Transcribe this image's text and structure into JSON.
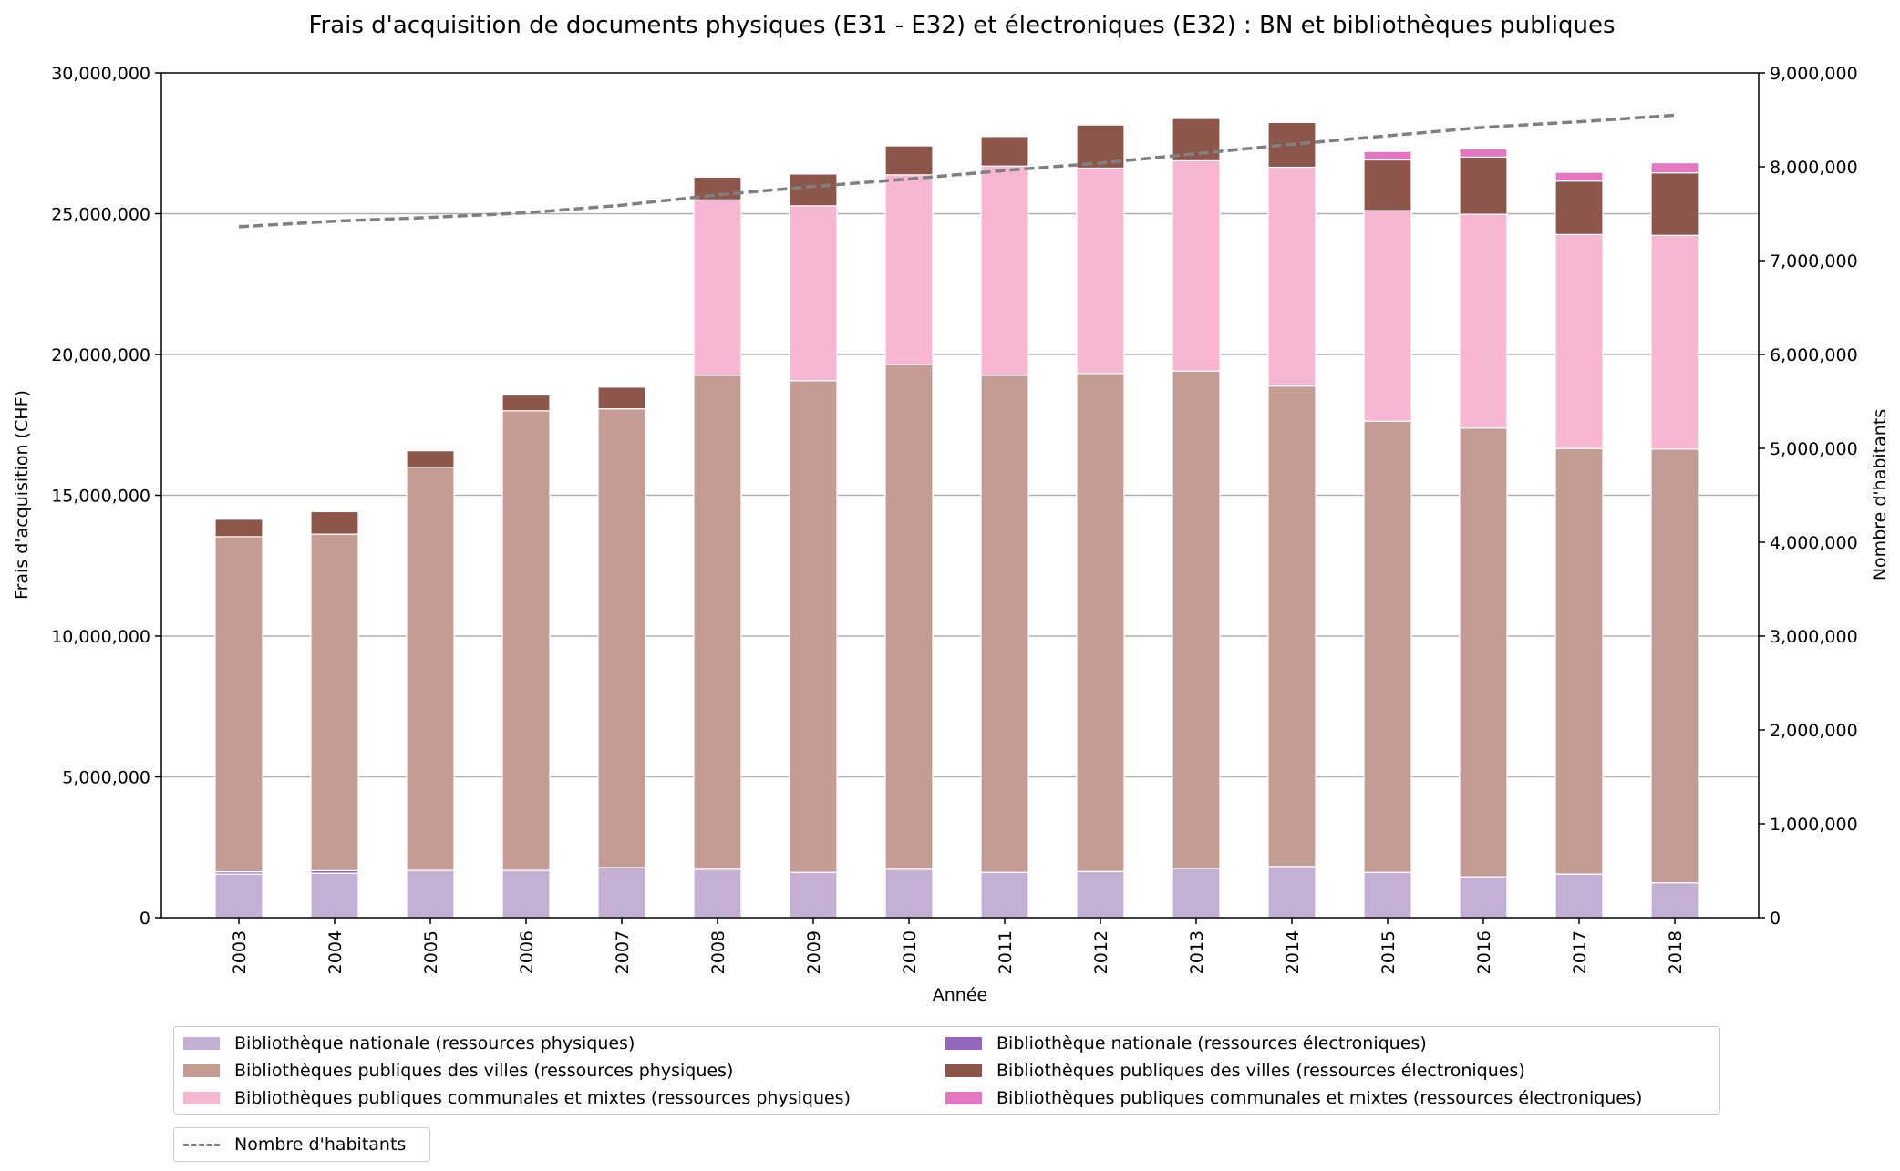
{
  "chart_data": {
    "type": "bar",
    "stacked": true,
    "title": "Frais d'acquisition de documents physiques (E31 - E32) et électroniques (E32) : BN et bibliothèques publiques",
    "xlabel": "Année",
    "ylabel": "Frais d'acquisition (CHF)",
    "ylabel_right": "Nombre d'habitants",
    "ylim": [
      0,
      30000000
    ],
    "ylim_right": [
      0,
      9000000
    ],
    "yticks": [
      "0",
      "5,000,000",
      "10,000,000",
      "15,000,000",
      "20,000,000",
      "25,000,000",
      "30,000,000"
    ],
    "yticks_right": [
      "0",
      "1,000,000",
      "2,000,000",
      "3,000,000",
      "4,000,000",
      "5,000,000",
      "6,000,000",
      "7,000,000",
      "8,000,000",
      "9,000,000"
    ],
    "grid": "horizontal",
    "legend_position": "bottom",
    "categories": [
      "2003",
      "2004",
      "2005",
      "2006",
      "2007",
      "2008",
      "2009",
      "2010",
      "2011",
      "2012",
      "2013",
      "2014",
      "2015",
      "2016",
      "2017",
      "2018"
    ],
    "series": [
      {
        "name": "Bibliothèque nationale (ressources physiques)",
        "color": "#c5b0d5",
        "values": [
          1550000,
          1580000,
          1680000,
          1680000,
          1780000,
          1720000,
          1610000,
          1720000,
          1610000,
          1640000,
          1750000,
          1820000,
          1610000,
          1450000,
          1550000,
          1240000
        ]
      },
      {
        "name": "Bibliothèque nationale (ressources électroniques)",
        "color": "#9467bd",
        "values": [
          80000,
          90000,
          0,
          0,
          0,
          0,
          0,
          0,
          0,
          0,
          0,
          0,
          0,
          0,
          0,
          0
        ]
      },
      {
        "name": "Bibliothèques publiques des villes (ressources physiques)",
        "color": "#c49c94",
        "values": [
          11900000,
          11950000,
          14320000,
          16320000,
          16290000,
          17540000,
          17460000,
          17920000,
          17650000,
          17690000,
          17660000,
          17060000,
          16020000,
          15940000,
          15110000,
          15400000
        ]
      },
      {
        "name": "Bibliothèques publiques communales et mixtes (ressources physiques)",
        "color": "#f7b6d2",
        "values": [
          0,
          0,
          0,
          0,
          0,
          6230000,
          6210000,
          6740000,
          7430000,
          7290000,
          7470000,
          7770000,
          7480000,
          7590000,
          7600000,
          7590000
        ]
      },
      {
        "name": "Bibliothèques publiques des villes (ressources électroniques)",
        "color": "#8c564b",
        "values": [
          620000,
          800000,
          580000,
          560000,
          770000,
          810000,
          1130000,
          1030000,
          1050000,
          1530000,
          1500000,
          1590000,
          1800000,
          2030000,
          1900000,
          2220000
        ]
      },
      {
        "name": "Bibliothèques publiques communales et mixtes (ressources électroniques)",
        "color": "#e377c2",
        "values": [
          0,
          0,
          0,
          0,
          0,
          0,
          0,
          0,
          0,
          0,
          0,
          0,
          300000,
          290000,
          310000,
          360000
        ]
      }
    ],
    "line": {
      "name": "Nombre d'habitants",
      "color": "#808080",
      "style": "dashed",
      "axis": "right",
      "values": [
        7360000,
        7420000,
        7460000,
        7510000,
        7590000,
        7700000,
        7790000,
        7870000,
        7960000,
        8040000,
        8140000,
        8240000,
        8330000,
        8420000,
        8480000,
        8550000
      ]
    }
  }
}
